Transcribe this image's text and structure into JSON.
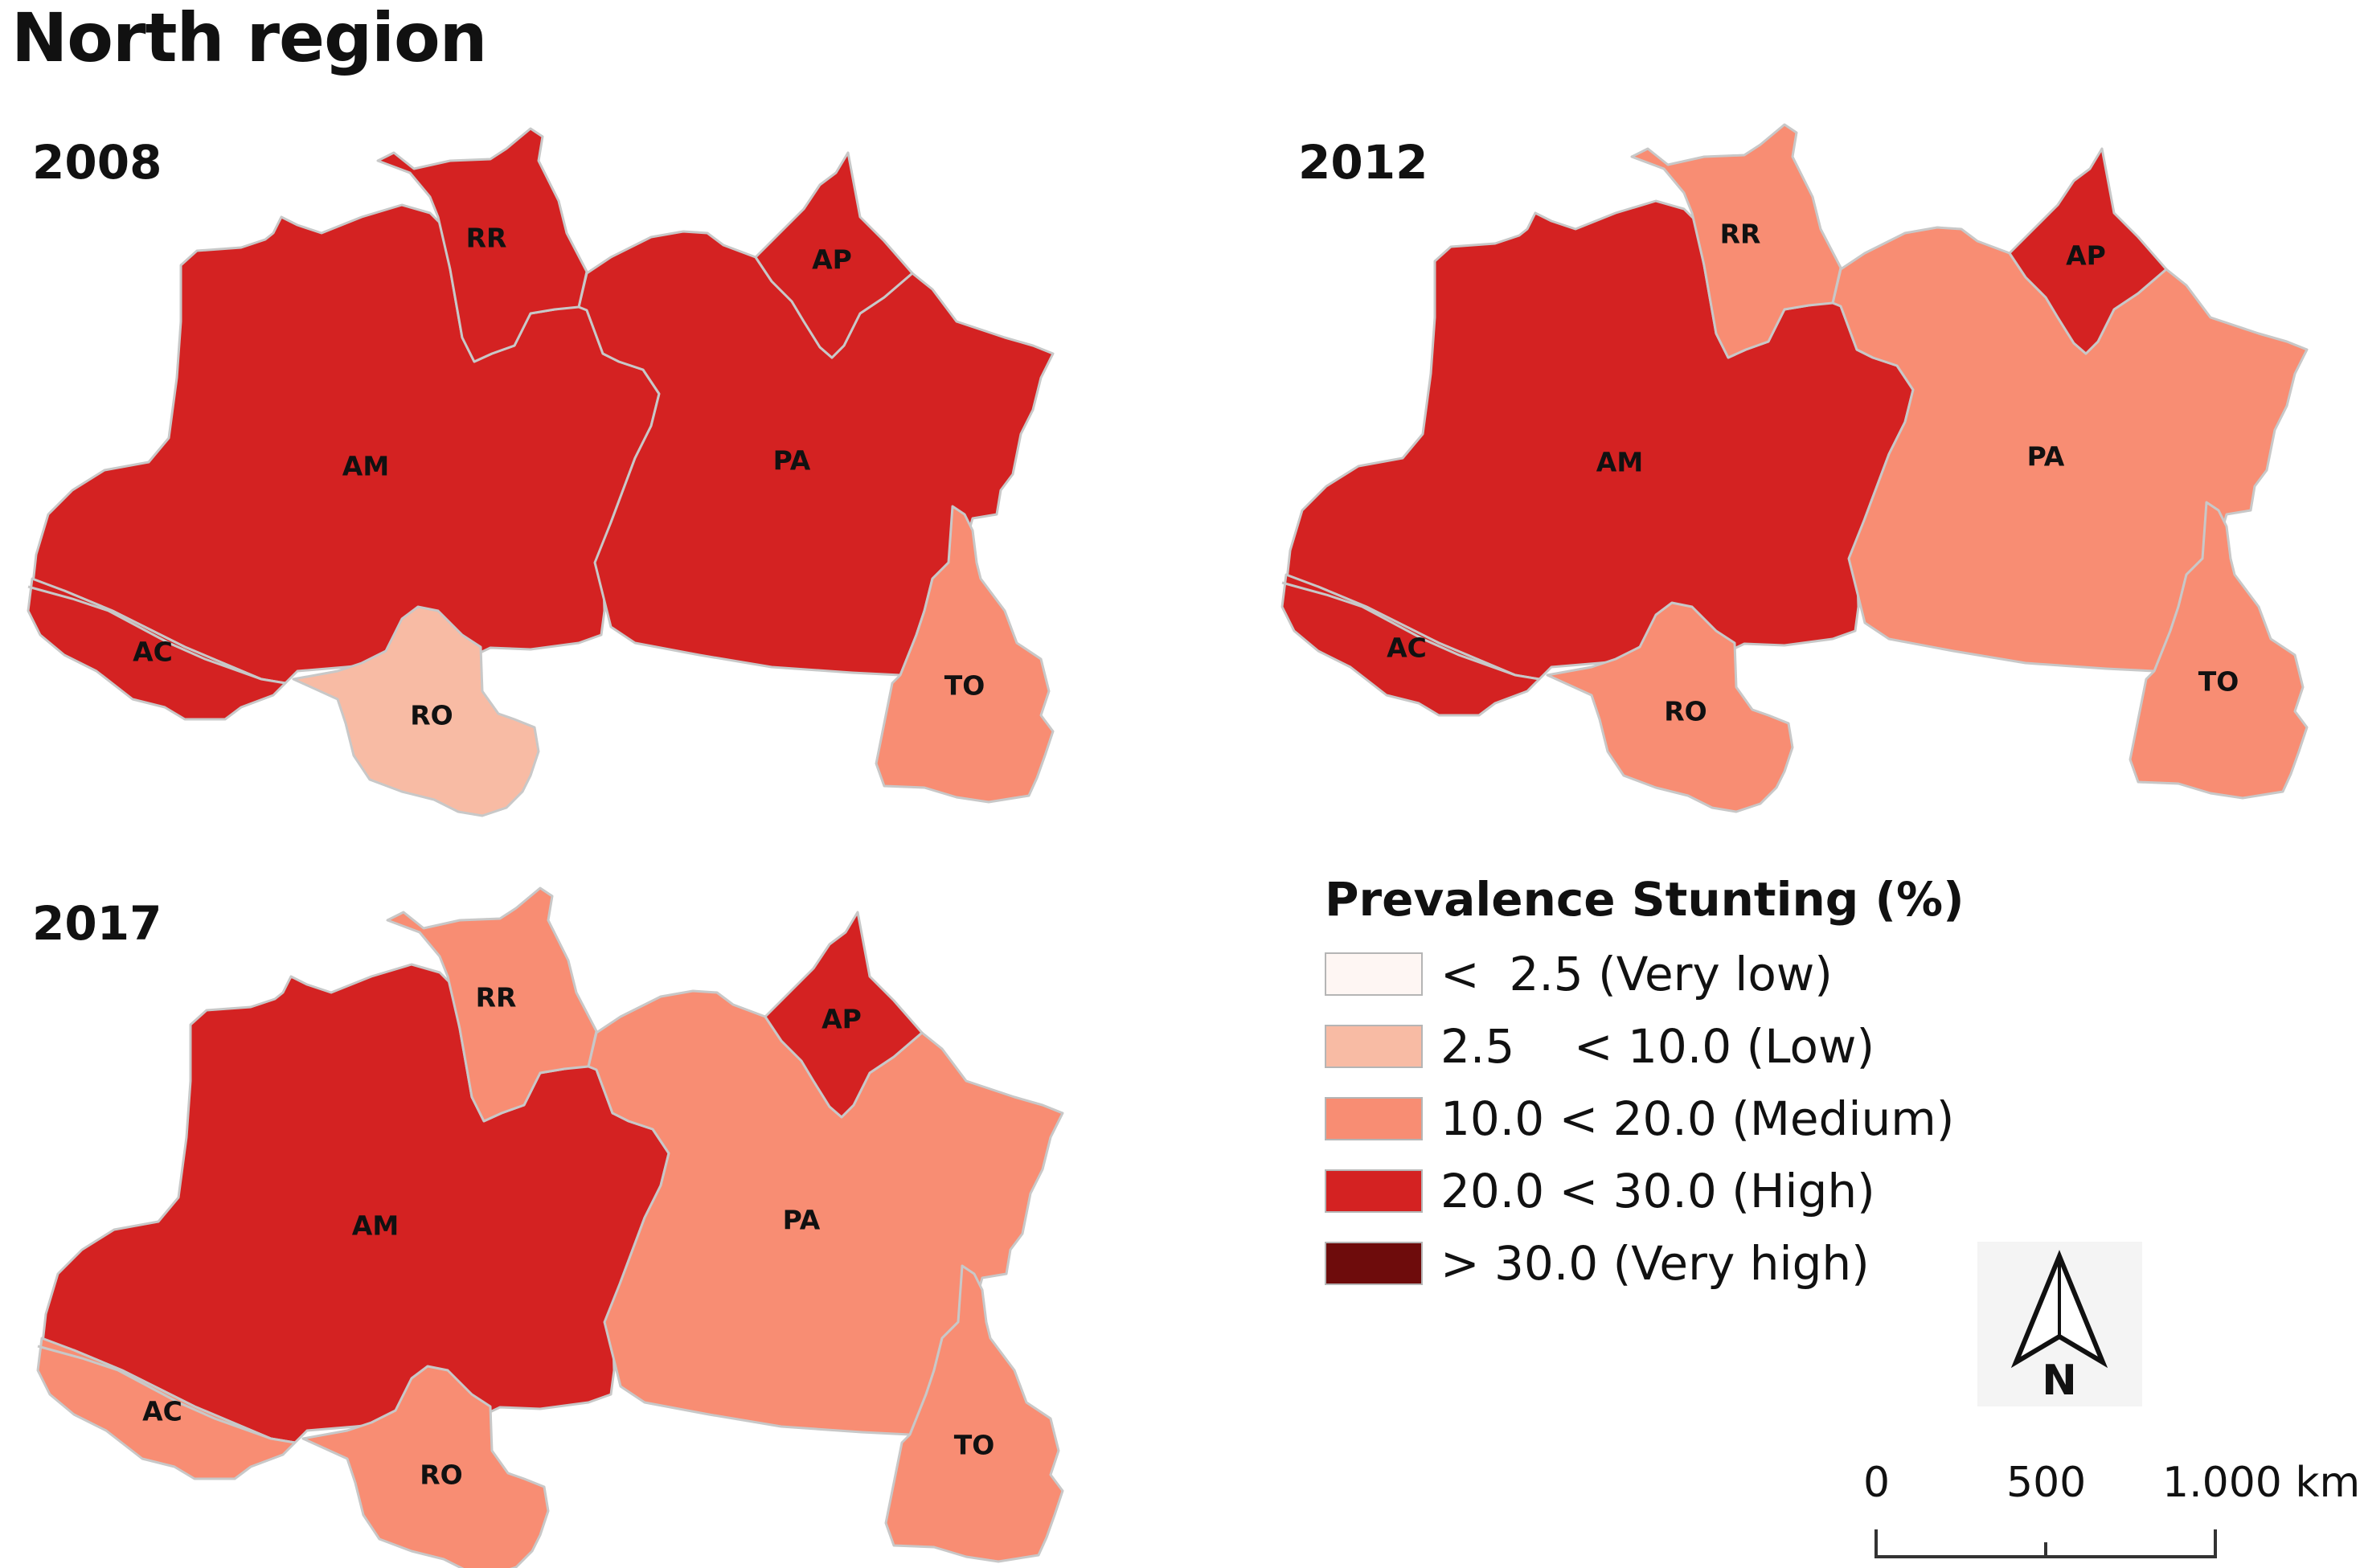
{
  "title": "North region",
  "colors": {
    "very_low": "#fef6f3",
    "low": "#f8bba4",
    "medium": "#f88d73",
    "high": "#d42222",
    "very_high": "#6e0c0c"
  },
  "maps": [
    {
      "year": "2008",
      "states": [
        {
          "abbr": "RR",
          "class": "high"
        },
        {
          "abbr": "AP",
          "class": "high"
        },
        {
          "abbr": "AM",
          "class": "high"
        },
        {
          "abbr": "PA",
          "class": "high"
        },
        {
          "abbr": "AC",
          "class": "high"
        },
        {
          "abbr": "RO",
          "class": "low"
        },
        {
          "abbr": "TO",
          "class": "medium"
        }
      ]
    },
    {
      "year": "2012",
      "states": [
        {
          "abbr": "RR",
          "class": "medium"
        },
        {
          "abbr": "AP",
          "class": "high"
        },
        {
          "abbr": "AM",
          "class": "high"
        },
        {
          "abbr": "PA",
          "class": "medium"
        },
        {
          "abbr": "AC",
          "class": "high"
        },
        {
          "abbr": "RO",
          "class": "medium"
        },
        {
          "abbr": "TO",
          "class": "medium"
        }
      ]
    },
    {
      "year": "2017",
      "states": [
        {
          "abbr": "RR",
          "class": "medium"
        },
        {
          "abbr": "AP",
          "class": "high"
        },
        {
          "abbr": "AM",
          "class": "high"
        },
        {
          "abbr": "PA",
          "class": "medium"
        },
        {
          "abbr": "AC",
          "class": "medium"
        },
        {
          "abbr": "RO",
          "class": "medium"
        },
        {
          "abbr": "TO",
          "class": "medium"
        }
      ]
    }
  ],
  "legend": {
    "title": "Prevalence Stunting (%)",
    "items": [
      {
        "key": "very_low",
        "label": "<  2.5 (Very low)"
      },
      {
        "key": "low",
        "label": "2.5    < 10.0 (Low)"
      },
      {
        "key": "medium",
        "label": "10.0 < 20.0 (Medium)"
      },
      {
        "key": "high",
        "label": "20.0 < 30.0 (High)"
      },
      {
        "key": "very_high",
        "label": "> 30.0 (Very high)"
      }
    ]
  },
  "north_arrow": {
    "label": "N",
    "icon": "north-arrow-icon"
  },
  "scale_bar": {
    "labels": [
      "0",
      "500",
      "1.000 km"
    ]
  }
}
